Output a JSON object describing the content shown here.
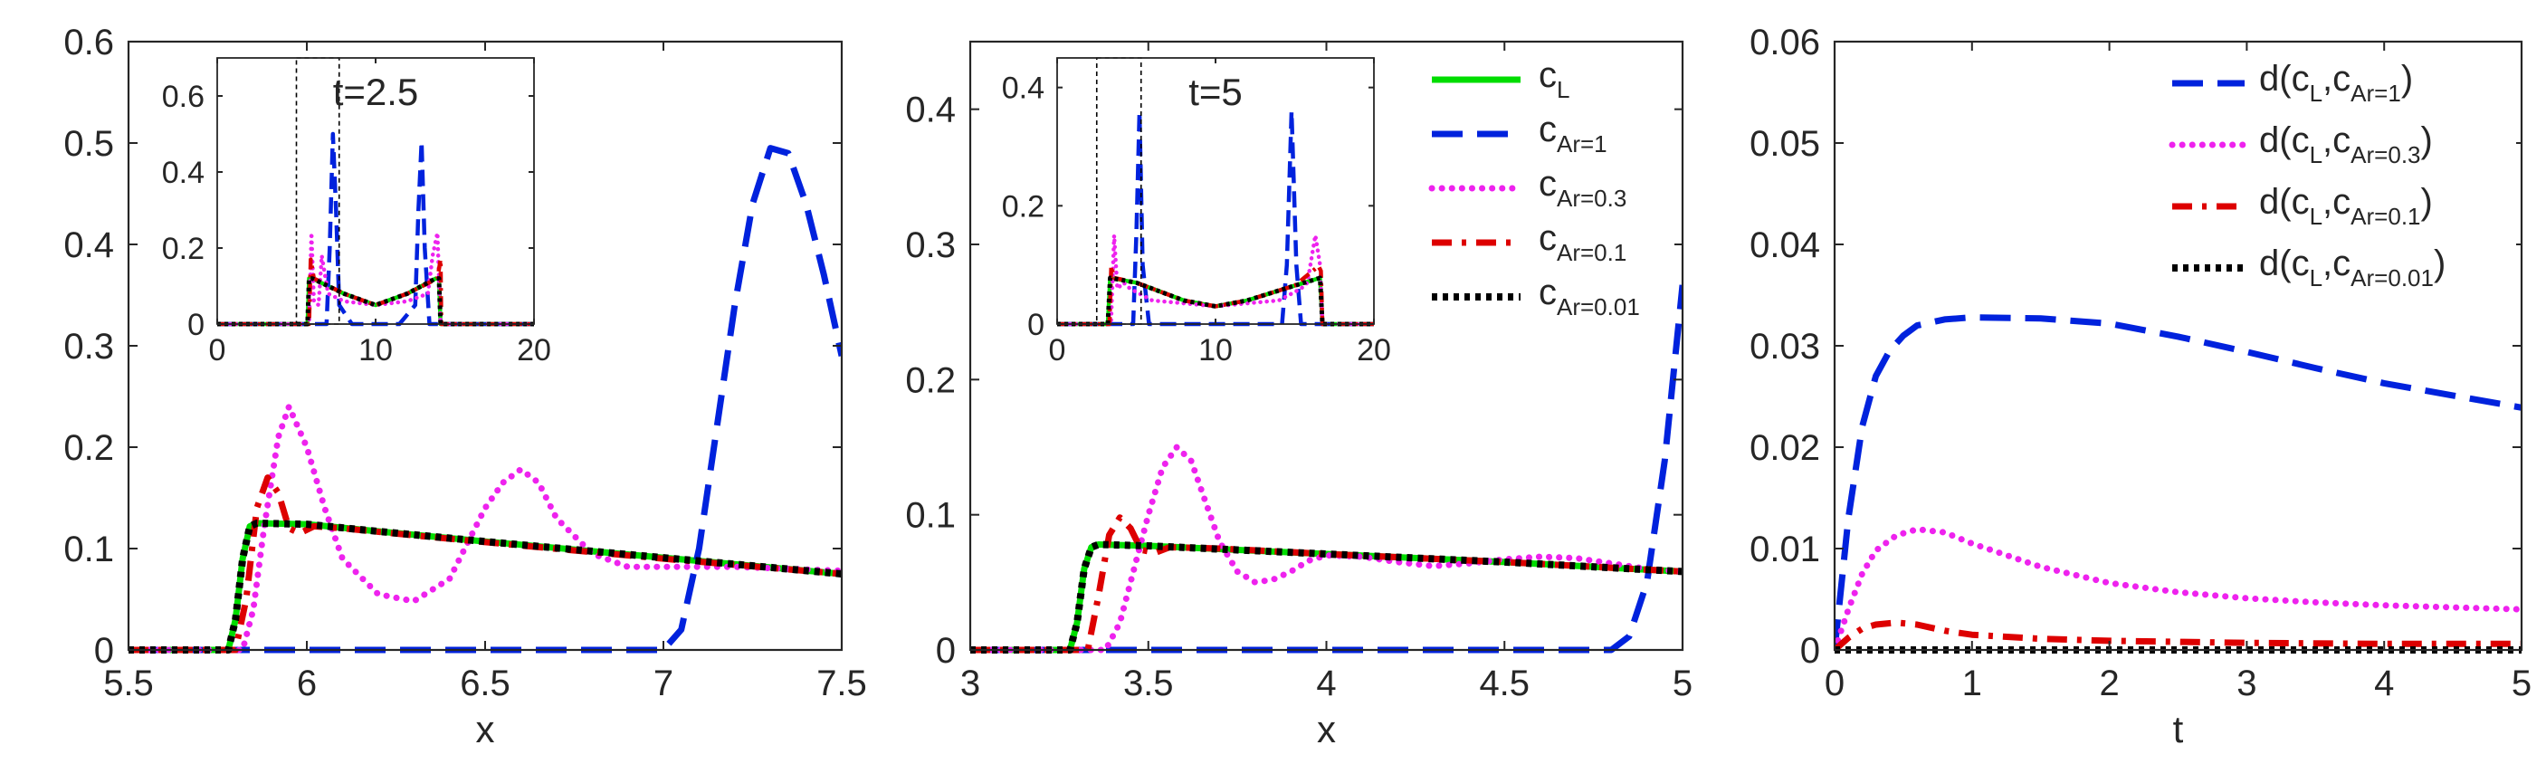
{
  "chart_data": [
    {
      "id": "panel-a",
      "type": "line",
      "xlabel": "x",
      "ylabel": "",
      "xlim": [
        5.5,
        7.5
      ],
      "ylim": [
        0,
        0.6
      ],
      "xticks": [
        "5.5",
        "6",
        "6.5",
        "7",
        "7.5"
      ],
      "yticks": [
        "0",
        "0.1",
        "0.2",
        "0.3",
        "0.4",
        "0.5",
        "0.6"
      ],
      "series": [
        {
          "name": "c_L",
          "color": "#00dd00",
          "style": "solid",
          "x": [
            5.5,
            5.78,
            5.8,
            5.82,
            5.84,
            5.86,
            6.0,
            6.2,
            6.5,
            7.0,
            7.5
          ],
          "y": [
            0,
            0,
            0.03,
            0.09,
            0.122,
            0.125,
            0.124,
            0.117,
            0.107,
            0.091,
            0.075
          ]
        },
        {
          "name": "c_Ar=1",
          "color": "#0022dd",
          "style": "dash",
          "x": [
            5.5,
            6.5,
            7.0,
            7.05,
            7.1,
            7.15,
            7.2,
            7.25,
            7.3,
            7.35,
            7.4,
            7.45,
            7.5
          ],
          "y": [
            0,
            0,
            0,
            0.02,
            0.1,
            0.22,
            0.34,
            0.44,
            0.495,
            0.49,
            0.44,
            0.37,
            0.29
          ]
        },
        {
          "name": "c_Ar=0.3",
          "color": "#ee22ee",
          "style": "dot",
          "x": [
            5.5,
            5.82,
            5.85,
            5.88,
            5.92,
            5.95,
            6.0,
            6.05,
            6.1,
            6.2,
            6.3,
            6.4,
            6.5,
            6.55,
            6.6,
            6.65,
            6.7,
            6.8,
            6.9,
            7.0,
            7.2,
            7.5
          ],
          "y": [
            0,
            0,
            0.04,
            0.12,
            0.21,
            0.24,
            0.2,
            0.14,
            0.09,
            0.055,
            0.048,
            0.07,
            0.14,
            0.165,
            0.178,
            0.165,
            0.13,
            0.095,
            0.082,
            0.082,
            0.082,
            0.078
          ]
        },
        {
          "name": "c_Ar=0.1",
          "color": "#dd0000",
          "style": "dashdot",
          "x": [
            5.5,
            5.8,
            5.83,
            5.86,
            5.89,
            5.92,
            5.95,
            5.98,
            6.02,
            6.1,
            6.3,
            6.6,
            7.0,
            7.5
          ],
          "y": [
            0,
            0,
            0.05,
            0.14,
            0.17,
            0.155,
            0.12,
            0.115,
            0.122,
            0.12,
            0.113,
            0.103,
            0.09,
            0.075
          ]
        },
        {
          "name": "c_Ar=0.01",
          "color": "#000000",
          "style": "dotsq",
          "x": [
            5.5,
            5.78,
            5.8,
            5.82,
            5.84,
            5.86,
            6.0,
            6.2,
            6.5,
            7.0,
            7.5
          ],
          "y": [
            0,
            0,
            0.03,
            0.09,
            0.122,
            0.125,
            0.124,
            0.117,
            0.107,
            0.091,
            0.075
          ]
        }
      ]
    },
    {
      "id": "panel-a-inset",
      "type": "line",
      "title": "t=2.5",
      "xlim": [
        0,
        20
      ],
      "ylim": [
        0,
        0.7
      ],
      "xticks": [
        "0",
        "10",
        "20"
      ],
      "yticks": [
        "0",
        "0.2",
        "0.4",
        "0.6"
      ],
      "zoom_box": {
        "x": [
          5,
          7.7
        ],
        "y": [
          0,
          0.7
        ]
      },
      "series": [
        {
          "name": "c_L",
          "color": "#00dd00",
          "style": "solid",
          "x": [
            0,
            5.7,
            5.8,
            6,
            8,
            10,
            12,
            13.8,
            14,
            14.1,
            20
          ],
          "y": [
            0,
            0,
            0.12,
            0.12,
            0.08,
            0.05,
            0.08,
            0.12,
            0.12,
            0,
            0
          ]
        },
        {
          "name": "c_Ar=1",
          "color": "#0022dd",
          "style": "dash",
          "x": [
            0,
            6.9,
            7.1,
            7.3,
            7.5,
            7.7,
            8.5,
            10,
            11.5,
            12.5,
            12.7,
            12.9,
            13.1,
            13.4,
            20
          ],
          "y": [
            0,
            0,
            0.2,
            0.5,
            0.3,
            0.05,
            0,
            0,
            0,
            0.05,
            0.3,
            0.48,
            0.2,
            0,
            0
          ]
        },
        {
          "name": "c_Ar=0.3",
          "color": "#ee22ee",
          "style": "dot",
          "x": [
            0,
            5.8,
            5.95,
            6.1,
            6.4,
            6.6,
            7,
            8,
            10,
            12,
            13.3,
            13.6,
            13.9,
            14.1,
            20
          ],
          "y": [
            0,
            0,
            0.24,
            0.06,
            0.05,
            0.18,
            0.08,
            0.06,
            0.05,
            0.06,
            0.08,
            0.18,
            0.24,
            0,
            0
          ]
        },
        {
          "name": "c_Ar=0.1",
          "color": "#dd0000",
          "style": "dashdot",
          "x": [
            0,
            5.8,
            5.9,
            6.1,
            8,
            10,
            12,
            13.9,
            14.1,
            14.15,
            20
          ],
          "y": [
            0,
            0,
            0.17,
            0.12,
            0.08,
            0.05,
            0.08,
            0.12,
            0.17,
            0,
            0
          ]
        },
        {
          "name": "c_Ar=0.01",
          "color": "#000000",
          "style": "dotsq",
          "x": [
            0,
            5.7,
            5.8,
            6,
            8,
            10,
            12,
            13.8,
            14,
            14.1,
            20
          ],
          "y": [
            0,
            0,
            0.12,
            0.12,
            0.08,
            0.05,
            0.08,
            0.12,
            0.12,
            0,
            0
          ]
        }
      ]
    },
    {
      "id": "panel-b",
      "type": "line",
      "xlabel": "x",
      "ylabel": "",
      "xlim": [
        3,
        5
      ],
      "ylim": [
        0,
        0.45
      ],
      "xticks": [
        "3",
        "3.5",
        "4",
        "4.5",
        "5"
      ],
      "yticks": [
        "0",
        "0.1",
        "0.2",
        "0.3",
        "0.4"
      ],
      "series": [
        {
          "name": "c_L",
          "color": "#00dd00",
          "style": "solid",
          "x": [
            3,
            3.28,
            3.3,
            3.32,
            3.34,
            3.36,
            3.5,
            4.0,
            4.5,
            5.0
          ],
          "y": [
            0,
            0,
            0.02,
            0.06,
            0.076,
            0.078,
            0.077,
            0.071,
            0.065,
            0.058
          ]
        },
        {
          "name": "c_Ar=1",
          "color": "#0022dd",
          "style": "dash",
          "x": [
            3,
            4.5,
            4.8,
            4.85,
            4.9,
            4.95,
            5.0
          ],
          "y": [
            0,
            0,
            0,
            0.01,
            0.05,
            0.14,
            0.27
          ]
        },
        {
          "name": "c_Ar=0.3",
          "color": "#ee22ee",
          "style": "dot",
          "x": [
            3,
            3.38,
            3.42,
            3.46,
            3.5,
            3.54,
            3.58,
            3.62,
            3.66,
            3.7,
            3.75,
            3.8,
            3.85,
            3.9,
            3.95,
            4.0,
            4.1,
            4.2,
            4.3,
            4.4,
            4.5,
            4.6,
            4.7,
            4.8,
            4.9,
            5.0
          ],
          "y": [
            0,
            0,
            0.02,
            0.06,
            0.1,
            0.135,
            0.15,
            0.14,
            0.11,
            0.08,
            0.058,
            0.05,
            0.052,
            0.058,
            0.066,
            0.07,
            0.069,
            0.065,
            0.062,
            0.064,
            0.067,
            0.069,
            0.068,
            0.064,
            0.06,
            0.058
          ]
        },
        {
          "name": "c_Ar=0.1",
          "color": "#dd0000",
          "style": "dashdot",
          "x": [
            3,
            3.33,
            3.36,
            3.39,
            3.42,
            3.45,
            3.48,
            3.52,
            3.56,
            3.7,
            4.0,
            4.5,
            5.0
          ],
          "y": [
            0,
            0,
            0.04,
            0.085,
            0.098,
            0.09,
            0.074,
            0.072,
            0.076,
            0.075,
            0.071,
            0.065,
            0.058
          ]
        },
        {
          "name": "c_Ar=0.01",
          "color": "#000000",
          "style": "dotsq",
          "x": [
            3,
            3.28,
            3.3,
            3.32,
            3.34,
            3.36,
            3.5,
            4.0,
            4.5,
            5.0
          ],
          "y": [
            0,
            0,
            0.02,
            0.06,
            0.076,
            0.078,
            0.077,
            0.071,
            0.065,
            0.058
          ]
        }
      ]
    },
    {
      "id": "panel-b-inset",
      "type": "line",
      "title": "t=5",
      "xlim": [
        0,
        20
      ],
      "ylim": [
        0,
        0.45
      ],
      "xticks": [
        "0",
        "10",
        "20"
      ],
      "yticks": [
        "0",
        "0.2",
        "0.4"
      ],
      "zoom_box": {
        "x": [
          2.5,
          5.3
        ],
        "y": [
          0,
          0.45
        ]
      },
      "series": [
        {
          "name": "c_L",
          "color": "#00dd00",
          "style": "solid",
          "x": [
            0,
            3.2,
            3.35,
            5,
            8,
            10,
            12,
            15,
            16.6,
            16.75,
            20
          ],
          "y": [
            0,
            0,
            0.078,
            0.07,
            0.04,
            0.03,
            0.04,
            0.065,
            0.078,
            0,
            0
          ]
        },
        {
          "name": "c_Ar=1",
          "color": "#0022dd",
          "style": "dash",
          "x": [
            0,
            4.8,
            5.0,
            5.2,
            5.4,
            5.8,
            8,
            10,
            12,
            14.2,
            14.5,
            14.8,
            15.1,
            15.4,
            20
          ],
          "y": [
            0,
            0,
            0.15,
            0.36,
            0.1,
            0,
            0,
            0,
            0,
            0,
            0.1,
            0.36,
            0.1,
            0,
            0
          ]
        },
        {
          "name": "c_Ar=0.3",
          "color": "#ee22ee",
          "style": "dot",
          "x": [
            0,
            3.4,
            3.6,
            3.8,
            4.2,
            4.6,
            6,
            8,
            10,
            12,
            14,
            15.4,
            15.8,
            16.3,
            16.6,
            16.75,
            20
          ],
          "y": [
            0,
            0,
            0.15,
            0.06,
            0.07,
            0.06,
            0.04,
            0.035,
            0.03,
            0.035,
            0.04,
            0.06,
            0.07,
            0.15,
            0.1,
            0,
            0
          ]
        },
        {
          "name": "c_Ar=0.1",
          "color": "#dd0000",
          "style": "dashdot",
          "x": [
            0,
            3.3,
            3.42,
            3.6,
            5,
            8,
            10,
            12,
            15,
            16.5,
            16.65,
            16.75,
            20
          ],
          "y": [
            0,
            0,
            0.098,
            0.078,
            0.07,
            0.04,
            0.03,
            0.04,
            0.065,
            0.098,
            0.09,
            0,
            0
          ]
        },
        {
          "name": "c_Ar=0.01",
          "color": "#000000",
          "style": "dotsq",
          "x": [
            0,
            3.2,
            3.35,
            5,
            8,
            10,
            12,
            15,
            16.6,
            16.75,
            20
          ],
          "y": [
            0,
            0,
            0.078,
            0.07,
            0.04,
            0.03,
            0.04,
            0.065,
            0.078,
            0,
            0
          ]
        }
      ]
    },
    {
      "id": "panel-c",
      "type": "line",
      "xlabel": "t",
      "ylabel": "",
      "xlim": [
        0,
        5
      ],
      "ylim": [
        0,
        0.06
      ],
      "xticks": [
        "0",
        "1",
        "2",
        "3",
        "4",
        "5"
      ],
      "yticks": [
        "0",
        "0.01",
        "0.02",
        "0.03",
        "0.04",
        "0.05",
        "0.06"
      ],
      "series": [
        {
          "name": "d(c_L,c_Ar=1)",
          "color": "#0022dd",
          "style": "dash",
          "x": [
            0,
            0.1,
            0.2,
            0.3,
            0.4,
            0.5,
            0.6,
            0.8,
            1.0,
            1.5,
            2.0,
            2.5,
            3.0,
            3.5,
            4.0,
            4.5,
            5.0
          ],
          "y": [
            0,
            0.013,
            0.022,
            0.027,
            0.0295,
            0.031,
            0.032,
            0.0326,
            0.0328,
            0.0327,
            0.0322,
            0.0309,
            0.0294,
            0.0278,
            0.0263,
            0.0251,
            0.0239
          ]
        },
        {
          "name": "d(c_L,c_Ar=0.3)",
          "color": "#ee22ee",
          "style": "dot",
          "x": [
            0,
            0.1,
            0.2,
            0.3,
            0.45,
            0.6,
            0.8,
            1.0,
            1.5,
            2.0,
            2.5,
            3.0,
            3.5,
            4.0,
            4.5,
            5.0
          ],
          "y": [
            0,
            0.004,
            0.0075,
            0.0098,
            0.0113,
            0.0119,
            0.0116,
            0.0105,
            0.0082,
            0.0066,
            0.0057,
            0.0051,
            0.0047,
            0.0044,
            0.0042,
            0.004
          ]
        },
        {
          "name": "d(c_L,c_Ar=0.1)",
          "color": "#dd0000",
          "style": "dashdot",
          "x": [
            0,
            0.1,
            0.2,
            0.3,
            0.45,
            0.6,
            0.8,
            1.0,
            1.5,
            2.0,
            3.0,
            4.0,
            5.0
          ],
          "y": [
            0,
            0.0012,
            0.0021,
            0.0025,
            0.0027,
            0.0025,
            0.0019,
            0.0015,
            0.0011,
            0.0009,
            0.0007,
            0.0006,
            0.0006
          ]
        },
        {
          "name": "d(c_L,c_Ar=0.01)",
          "color": "#000000",
          "style": "dotsq",
          "x": [
            0,
            1,
            2,
            3,
            4,
            5
          ],
          "y": [
            0,
            0,
            0,
            0,
            0,
            0
          ]
        }
      ]
    }
  ],
  "legend_b": [
    {
      "base": "c",
      "sub": "L",
      "color": "#00dd00",
      "style": "solid"
    },
    {
      "base": "c",
      "sub": "Ar=1",
      "color": "#0022dd",
      "style": "dash"
    },
    {
      "base": "c",
      "sub": "Ar=0.3",
      "color": "#ee22ee",
      "style": "dot"
    },
    {
      "base": "c",
      "sub": "Ar=0.1",
      "color": "#dd0000",
      "style": "dashdot"
    },
    {
      "base": "c",
      "sub": "Ar=0.01",
      "color": "#000000",
      "style": "dotsq"
    }
  ],
  "legend_c": [
    {
      "pre": "d(c",
      "sub1": "L",
      "mid": ",c",
      "sub2": "Ar=1",
      "post": ")",
      "color": "#0022dd",
      "style": "dash"
    },
    {
      "pre": "d(c",
      "sub1": "L",
      "mid": ",c",
      "sub2": "Ar=0.3",
      "post": ")",
      "color": "#ee22ee",
      "style": "dot"
    },
    {
      "pre": "d(c",
      "sub1": "L",
      "mid": ",c",
      "sub2": "Ar=0.1",
      "post": ")",
      "color": "#dd0000",
      "style": "dashdot"
    },
    {
      "pre": "d(c",
      "sub1": "L",
      "mid": ",c",
      "sub2": "Ar=0.01",
      "post": ")",
      "color": "#000000",
      "style": "dotsq"
    }
  ]
}
